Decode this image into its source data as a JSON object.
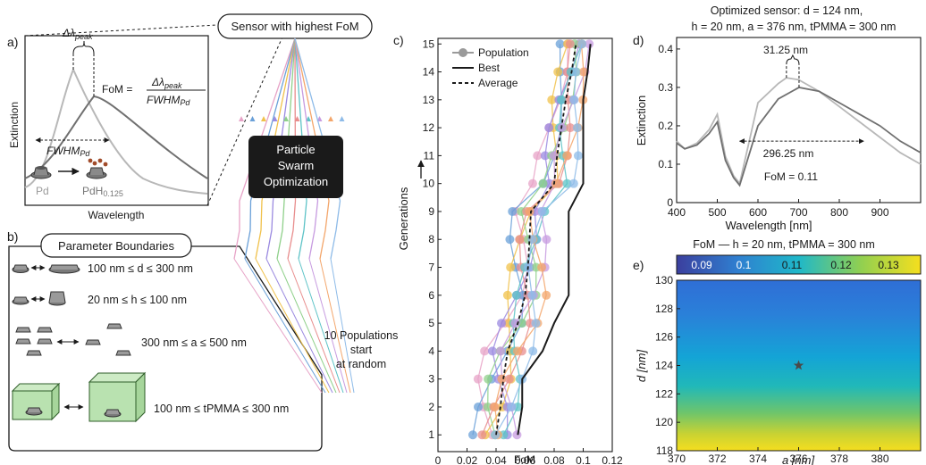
{
  "panel_a": {
    "letter": "a)",
    "delta_peak": "Δλ",
    "delta_peak_sub": "peak",
    "fom_lhs": "FoM =",
    "fom_num": "Δλ",
    "fom_num_sub": "peak",
    "fom_den": "FWHM",
    "fom_den_sub": "Pd",
    "fwhm": "FWHM",
    "fwhm_sub": "Pd",
    "ylabel": "Extinction",
    "xlabel": "Wavelength",
    "pd_label": "Pd",
    "pdh_label": "PdH",
    "pdh_sub": "0.125",
    "colors": {
      "pd_curve": "#b8b8b8",
      "pdh_curve": "#707070"
    }
  },
  "panel_b": {
    "letter": "b)",
    "title": "Parameter Boundaries",
    "ranges": [
      {
        "label": "100 nm ≤ d ≤ 300 nm"
      },
      {
        "label": "20 nm ≤ h ≤ 100 nm"
      },
      {
        "label": "300 nm ≤ a ≤ 500 nm"
      },
      {
        "label": "100 nm ≤ tPMMA ≤ 300 nm"
      }
    ],
    "colors": {
      "pmma_box": "#b9e2b0"
    }
  },
  "center": {
    "sensor_box": "Sensor with highest FoM",
    "pso_box": [
      "Particle",
      "Swarm",
      "Optimization"
    ],
    "populations_note": [
      "10 Populations",
      "start",
      "at random"
    ],
    "line_colors": [
      "#e7a3c7",
      "#6aa0d8",
      "#f0c14b",
      "#9b8ae0",
      "#8fd08a",
      "#e88d8d",
      "#5ec3c7",
      "#c79be0",
      "#f3a66b",
      "#8ebbe8"
    ]
  },
  "panel_c": {
    "letter": "c)",
    "ylabel": "Generations",
    "xlabel": "FoM",
    "xticks": [
      "0",
      "0.02",
      "0.04",
      "0.06",
      "0.08",
      "0.1",
      "0.12"
    ],
    "yticks": [
      "1",
      "2",
      "3",
      "4",
      "5",
      "6",
      "7",
      "8",
      "9",
      "10",
      "11",
      "12",
      "13",
      "14",
      "15"
    ],
    "legend": [
      "Population",
      "Best",
      "Average"
    ]
  },
  "panel_d": {
    "letter": "d)",
    "title_line1": "Optimized sensor: d = 124 nm,",
    "title_line2": "h = 20 nm, a = 376 nm, tPMMA = 300 nm",
    "shift": "31.25 nm",
    "fwhm": "296.25 nm",
    "fom": "FoM = 0.11",
    "ylabel": "Extinction",
    "xlabel": "Wavelength [nm]",
    "xticks": [
      "400",
      "500",
      "600",
      "700",
      "800",
      "900"
    ],
    "yticks": [
      "0",
      "0.1",
      "0.2",
      "0.3",
      "0.4"
    ]
  },
  "panel_e": {
    "letter": "e)",
    "title": "FoM — h = 20 nm, tPMMA = 300 nm",
    "colorbar_ticks": [
      "0.09",
      "0.1",
      "0.11",
      "0.12",
      "0.13"
    ],
    "ylabel": "d [nm]",
    "xlabel": "a [nm]",
    "xticks": [
      "370",
      "372",
      "374",
      "376",
      "378",
      "380"
    ],
    "yticks": [
      "118",
      "120",
      "122",
      "124",
      "126",
      "128",
      "130"
    ]
  },
  "chart_data": [
    {
      "type": "line",
      "title": "",
      "xlabel": "FoM",
      "ylabel": "Generations",
      "xlim": [
        0,
        0.12
      ],
      "ylim": [
        1,
        15
      ],
      "series": [
        {
          "name": "Best",
          "x": [
            0.055,
            0.058,
            0.058,
            0.072,
            0.08,
            0.09,
            0.09,
            0.09,
            0.09,
            0.1,
            0.1,
            0.1,
            0.1,
            0.103,
            0.105
          ],
          "y": [
            1,
            2,
            3,
            4,
            5,
            6,
            7,
            8,
            9,
            10,
            11,
            12,
            13,
            14,
            15
          ]
        },
        {
          "name": "Average",
          "x": [
            0.04,
            0.043,
            0.045,
            0.048,
            0.055,
            0.06,
            0.062,
            0.063,
            0.064,
            0.08,
            0.082,
            0.085,
            0.088,
            0.092,
            0.095
          ],
          "y": [
            1,
            2,
            3,
            4,
            5,
            6,
            7,
            8,
            9,
            10,
            11,
            12,
            13,
            14,
            15
          ]
        }
      ]
    },
    {
      "type": "line",
      "title": "Optimized sensor",
      "xlabel": "Wavelength [nm]",
      "ylabel": "Extinction",
      "xlim": [
        400,
        1000
      ],
      "ylim": [
        0,
        0.43
      ],
      "series": [
        {
          "name": "Pd",
          "x": [
            400,
            420,
            450,
            480,
            500,
            520,
            540,
            555,
            600,
            650,
            670,
            700,
            750,
            800,
            850,
            900,
            950,
            1000
          ],
          "y": [
            0.16,
            0.14,
            0.155,
            0.19,
            0.23,
            0.12,
            0.07,
            0.05,
            0.26,
            0.31,
            0.325,
            0.32,
            0.29,
            0.25,
            0.21,
            0.17,
            0.13,
            0.1
          ]
        },
        {
          "name": "PdH0.125",
          "x": [
            400,
            420,
            450,
            480,
            500,
            520,
            540,
            555,
            600,
            650,
            701,
            750,
            800,
            850,
            900,
            950,
            1000
          ],
          "y": [
            0.155,
            0.14,
            0.15,
            0.18,
            0.21,
            0.11,
            0.065,
            0.045,
            0.2,
            0.27,
            0.3,
            0.29,
            0.26,
            0.23,
            0.2,
            0.16,
            0.13
          ]
        }
      ]
    },
    {
      "type": "heatmap",
      "title": "FoM — h = 20 nm, tPMMA = 300 nm",
      "xlabel": "a [nm]",
      "ylabel": "d [nm]",
      "xlim": [
        370,
        382
      ],
      "ylim": [
        118,
        130
      ],
      "colorbar_range": [
        0.085,
        0.135
      ],
      "d_rows": [
        118,
        119,
        120,
        121,
        122,
        123,
        124,
        125,
        126,
        127,
        128,
        129,
        130
      ],
      "fom_by_row": [
        0.126,
        0.12,
        0.117,
        0.114,
        0.112,
        0.11,
        0.108,
        0.104,
        0.1,
        0.097,
        0.095,
        0.094,
        0.093
      ],
      "marker": {
        "a": 376,
        "d": 124
      }
    }
  ]
}
